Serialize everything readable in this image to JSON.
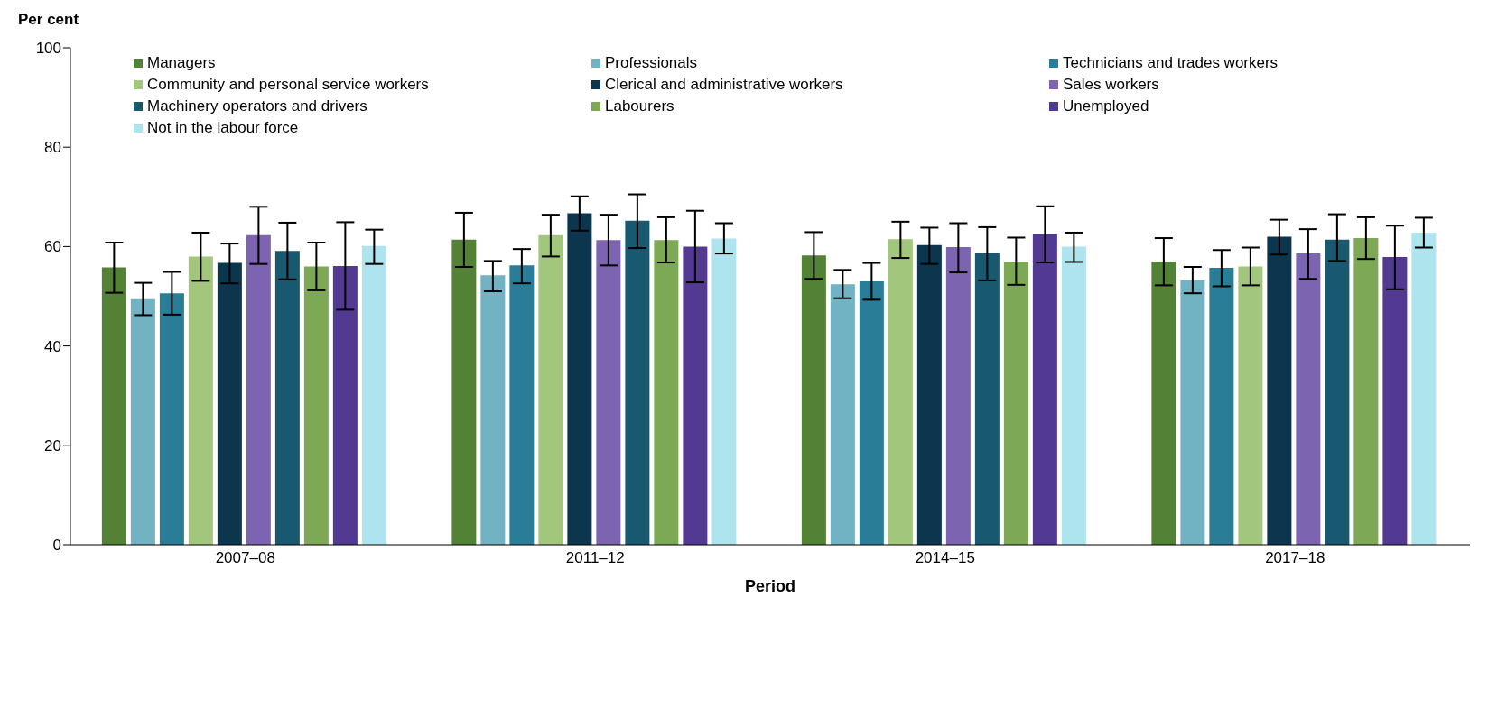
{
  "chart_data": {
    "type": "bar",
    "xlabel": "Period",
    "ylabel": "Per cent",
    "categories": [
      "2007–08",
      "2011–12",
      "2014–15",
      "2017–18"
    ],
    "ylim": [
      0,
      100
    ],
    "yticks": [
      0,
      20,
      40,
      60,
      80,
      100
    ],
    "grid": false,
    "legend": "top",
    "series": [
      {
        "name": "Managers",
        "color": "#538135",
        "values": [
          55.8,
          61.4,
          58.2,
          57
        ],
        "errors": [
          [
            50.7,
            60.8
          ],
          [
            55.9,
            66.8
          ],
          [
            53.5,
            62.9
          ],
          [
            52.2,
            61.7
          ]
        ]
      },
      {
        "name": "Professionals",
        "color": "#71b2c3",
        "values": [
          49.4,
          54.2,
          52.4,
          53.2
        ],
        "errors": [
          [
            46.2,
            52.7
          ],
          [
            51,
            57.1
          ],
          [
            49.6,
            55.3
          ],
          [
            50.6,
            55.9
          ]
        ]
      },
      {
        "name": "Technicians and trades workers",
        "color": "#2a7d97",
        "values": [
          50.6,
          56.2,
          53,
          55.7
        ],
        "errors": [
          [
            46.3,
            54.9
          ],
          [
            52.6,
            59.5
          ],
          [
            49.3,
            56.7
          ],
          [
            52,
            59.3
          ]
        ]
      },
      {
        "name": "Community and personal service workers",
        "color": "#a2c77c",
        "values": [
          58,
          62.3,
          61.5,
          56
        ],
        "errors": [
          [
            53.1,
            62.8
          ],
          [
            58,
            66.4
          ],
          [
            57.7,
            65
          ],
          [
            52.2,
            59.8
          ]
        ]
      },
      {
        "name": "Clerical and administrative workers",
        "color": "#0b364e",
        "values": [
          56.7,
          66.7,
          60.3,
          62
        ],
        "errors": [
          [
            52.6,
            60.6
          ],
          [
            63.2,
            70.1
          ],
          [
            56.5,
            63.8
          ],
          [
            58.4,
            65.4
          ]
        ]
      },
      {
        "name": "Sales workers",
        "color": "#7c64b1",
        "values": [
          62.3,
          61.3,
          59.9,
          58.6
        ],
        "errors": [
          [
            56.5,
            68
          ],
          [
            56.2,
            66.4
          ],
          [
            54.8,
            64.7
          ],
          [
            53.5,
            63.5
          ]
        ]
      },
      {
        "name": "Machinery operators and drivers",
        "color": "#195970",
        "values": [
          59.1,
          65.2,
          58.7,
          61.4
        ],
        "errors": [
          [
            53.4,
            64.8
          ],
          [
            59.7,
            70.5
          ],
          [
            53.2,
            63.9
          ],
          [
            57.1,
            66.5
          ]
        ]
      },
      {
        "name": "Labourers",
        "color": "#7da855",
        "values": [
          56,
          61.3,
          57,
          61.7
        ],
        "errors": [
          [
            51.2,
            60.8
          ],
          [
            56.8,
            65.9
          ],
          [
            52.3,
            61.8
          ],
          [
            57.5,
            65.9
          ]
        ]
      },
      {
        "name": "Unemployed",
        "color": "#523a92",
        "values": [
          56.1,
          60,
          62.5,
          57.9
        ],
        "errors": [
          [
            47.3,
            64.9
          ],
          [
            52.8,
            67.2
          ],
          [
            56.8,
            68.1
          ],
          [
            51.4,
            64.2
          ]
        ]
      },
      {
        "name": "Not in the labour force",
        "color": "#aee4ee",
        "values": [
          60.1,
          61.6,
          60,
          62.8
        ],
        "errors": [
          [
            56.5,
            63.4
          ],
          [
            58.6,
            64.7
          ],
          [
            56.9,
            62.8
          ],
          [
            59.8,
            65.8
          ]
        ]
      }
    ]
  }
}
